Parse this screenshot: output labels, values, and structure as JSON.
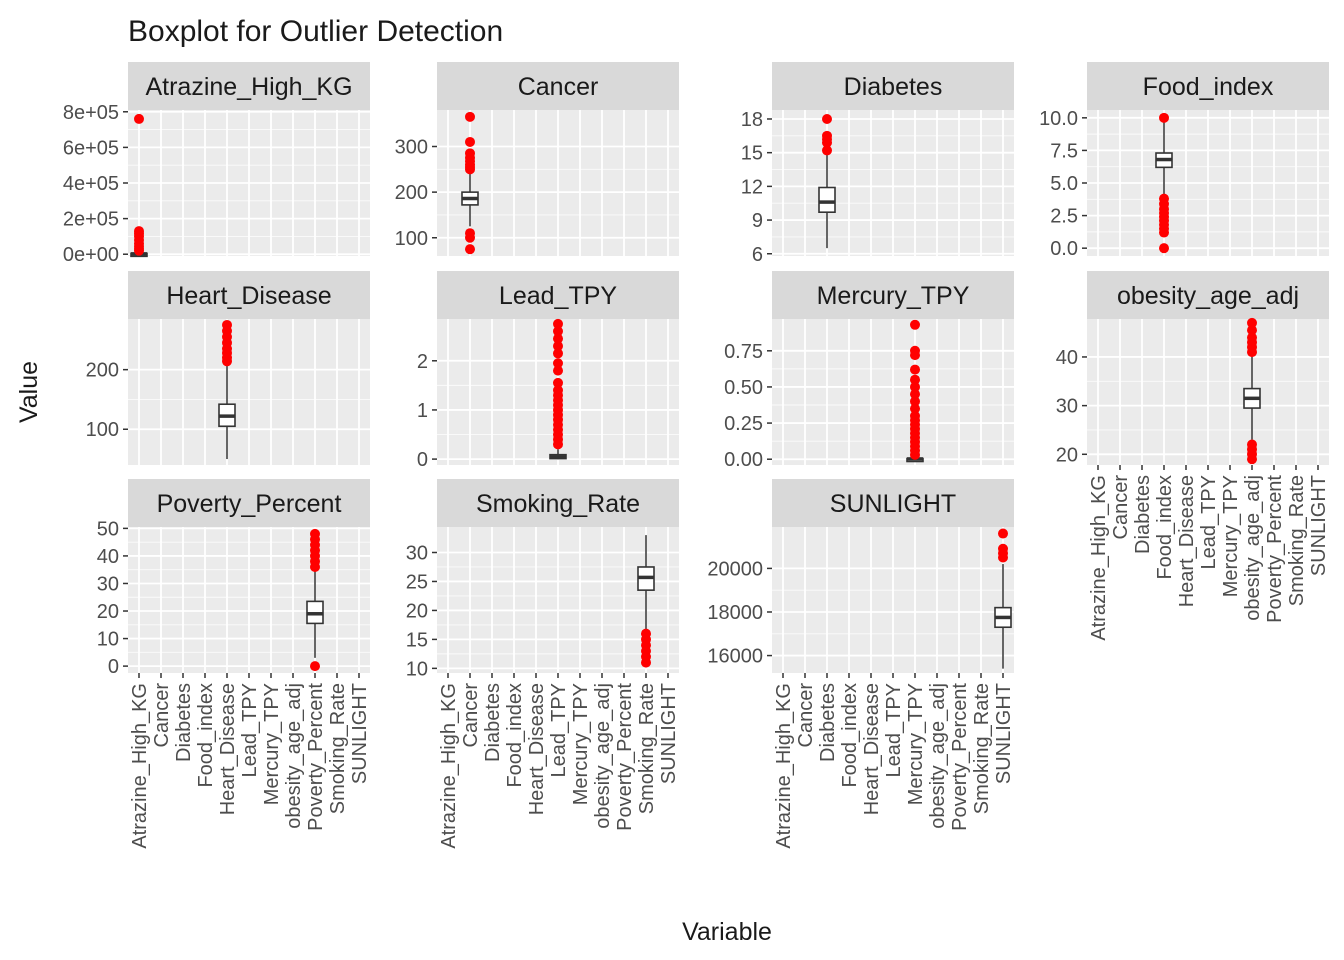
{
  "chart_data": {
    "type": "boxplot",
    "title": "Boxplot for Outlier Detection",
    "xlabel": "Variable",
    "ylabel": "Value",
    "layout": "facet_wrap 3 rows x 4 columns, free scales",
    "grid": true,
    "categories": [
      "Atrazine_High_KG",
      "Cancer",
      "Diabetes",
      "Food_index",
      "Heart_Disease",
      "Lead_TPY",
      "Mercury_TPY",
      "obesity_age_adj",
      "Poverty_Percent",
      "Smoking_Rate",
      "SUNLIGHT"
    ],
    "colors": {
      "outlier": "#ff0000",
      "panel_bg": "#ebebeb",
      "strip_bg": "#d9d9d9",
      "grid": "#ffffff",
      "box": "#333333"
    },
    "panels": [
      {
        "name": "Atrazine_High_KG",
        "yticks": [
          0,
          200000,
          400000,
          600000,
          800000
        ],
        "ytick_labels": [
          "0e+00",
          "2e+05",
          "4e+05",
          "6e+05",
          "8e+05"
        ],
        "ylim": [
          -10000,
          810000
        ],
        "box": {
          "min": 0,
          "q1": 0,
          "median": 2000,
          "q3": 5000,
          "max": 12000
        },
        "outliers": [
          760000,
          130000,
          115000,
          100000,
          80000,
          60000,
          45000,
          30000,
          20000
        ]
      },
      {
        "name": "Cancer",
        "yticks": [
          100,
          200,
          300
        ],
        "ytick_labels": [
          "100",
          "200",
          "300"
        ],
        "ylim": [
          60,
          380
        ],
        "box": {
          "min": 125,
          "q1": 172,
          "median": 186,
          "q3": 200,
          "max": 245
        },
        "outliers": [
          365,
          310,
          285,
          275,
          268,
          260,
          255,
          250,
          110,
          100,
          75
        ]
      },
      {
        "name": "Diabetes",
        "yticks": [
          6,
          9,
          12,
          15,
          18
        ],
        "ytick_labels": [
          "6",
          "9",
          "12",
          "15",
          "18"
        ],
        "ylim": [
          5.8,
          18.8
        ],
        "box": {
          "min": 6.5,
          "q1": 9.7,
          "median": 10.6,
          "q3": 11.9,
          "max": 15.0
        },
        "outliers": [
          18.0,
          16.5,
          16.2,
          15.9,
          15.2
        ]
      },
      {
        "name": "Food_index",
        "yticks": [
          0,
          2.5,
          5,
          7.5,
          10
        ],
        "ytick_labels": [
          "0.0",
          "2.5",
          "5.0",
          "7.5",
          "10.0"
        ],
        "ylim": [
          -0.6,
          10.6
        ],
        "box": {
          "min": 4.0,
          "q1": 6.2,
          "median": 6.8,
          "q3": 7.3,
          "max": 10.0
        },
        "outliers": [
          10.0,
          3.8,
          3.4,
          3.0,
          2.7,
          2.4,
          2.1,
          1.8,
          1.5,
          1.2,
          0.0
        ]
      },
      {
        "name": "Heart_Disease",
        "yticks": [
          100,
          200
        ],
        "ytick_labels": [
          "100",
          "200"
        ],
        "ylim": [
          40,
          285
        ],
        "box": {
          "min": 50,
          "q1": 105,
          "median": 122,
          "q3": 142,
          "max": 210
        },
        "outliers": [
          275,
          265,
          255,
          245,
          235,
          228,
          220,
          214
        ]
      },
      {
        "name": "Lead_TPY",
        "yticks": [
          0,
          1,
          2
        ],
        "ytick_labels": [
          "0",
          "1",
          "2"
        ],
        "ylim": [
          -0.12,
          2.85
        ],
        "box": {
          "min": 0,
          "q1": 0.01,
          "median": 0.04,
          "q3": 0.09,
          "max": 0.2
        },
        "outliers": [
          2.75,
          2.6,
          2.45,
          2.3,
          2.15,
          1.95,
          1.8,
          1.55,
          1.4,
          1.3,
          1.2,
          1.1,
          1.0,
          0.9,
          0.8,
          0.7,
          0.6,
          0.5,
          0.4,
          0.3
        ]
      },
      {
        "name": "Mercury_TPY",
        "yticks": [
          0,
          0.25,
          0.5,
          0.75
        ],
        "ytick_labels": [
          "0.00",
          "0.25",
          "0.50",
          "0.75"
        ],
        "ylim": [
          -0.04,
          0.97
        ],
        "box": {
          "min": 0,
          "q1": 0,
          "median": 0.002,
          "q3": 0.005,
          "max": 0.01
        },
        "outliers": [
          0.93,
          0.75,
          0.72,
          0.62,
          0.55,
          0.5,
          0.45,
          0.4,
          0.35,
          0.3,
          0.27,
          0.24,
          0.21,
          0.18,
          0.15,
          0.12,
          0.09,
          0.06,
          0.03
        ]
      },
      {
        "name": "obesity_age_adj",
        "yticks": [
          20,
          30,
          40
        ],
        "ytick_labels": [
          "20",
          "30",
          "40"
        ],
        "ylim": [
          17.8,
          47.8
        ],
        "box": {
          "min": 23,
          "q1": 29.5,
          "median": 31.5,
          "q3": 33.5,
          "max": 40
        },
        "outliers": [
          47,
          45.5,
          44,
          43,
          42,
          41,
          22,
          21,
          20,
          19
        ]
      },
      {
        "name": "Poverty_Percent",
        "yticks": [
          0,
          10,
          20,
          30,
          40,
          50
        ],
        "ytick_labels": [
          "0",
          "10",
          "20",
          "30",
          "40",
          "50"
        ],
        "ylim": [
          -2.5,
          50.5
        ],
        "box": {
          "min": 3,
          "q1": 15.5,
          "median": 19,
          "q3": 23.5,
          "max": 35
        },
        "outliers": [
          48,
          46,
          44,
          42,
          40,
          38,
          36,
          0
        ]
      },
      {
        "name": "Smoking_Rate",
        "yticks": [
          10,
          15,
          20,
          25,
          30
        ],
        "ytick_labels": [
          "10",
          "15",
          "20",
          "25",
          "30"
        ],
        "ylim": [
          9.2,
          34.4
        ],
        "box": {
          "min": 16.5,
          "q1": 23.5,
          "median": 25.7,
          "q3": 27.5,
          "max": 33
        },
        "outliers": [
          16,
          15,
          14,
          13,
          12,
          11
        ]
      },
      {
        "name": "SUNLIGHT",
        "yticks": [
          16000,
          18000,
          20000
        ],
        "ytick_labels": [
          "16000",
          "18000",
          "20000"
        ],
        "ylim": [
          15200,
          21900
        ],
        "box": {
          "min": 15400,
          "q1": 17300,
          "median": 17750,
          "q3": 18200,
          "max": 20200
        },
        "outliers": [
          21600,
          20900,
          20700,
          20500
        ]
      }
    ]
  }
}
